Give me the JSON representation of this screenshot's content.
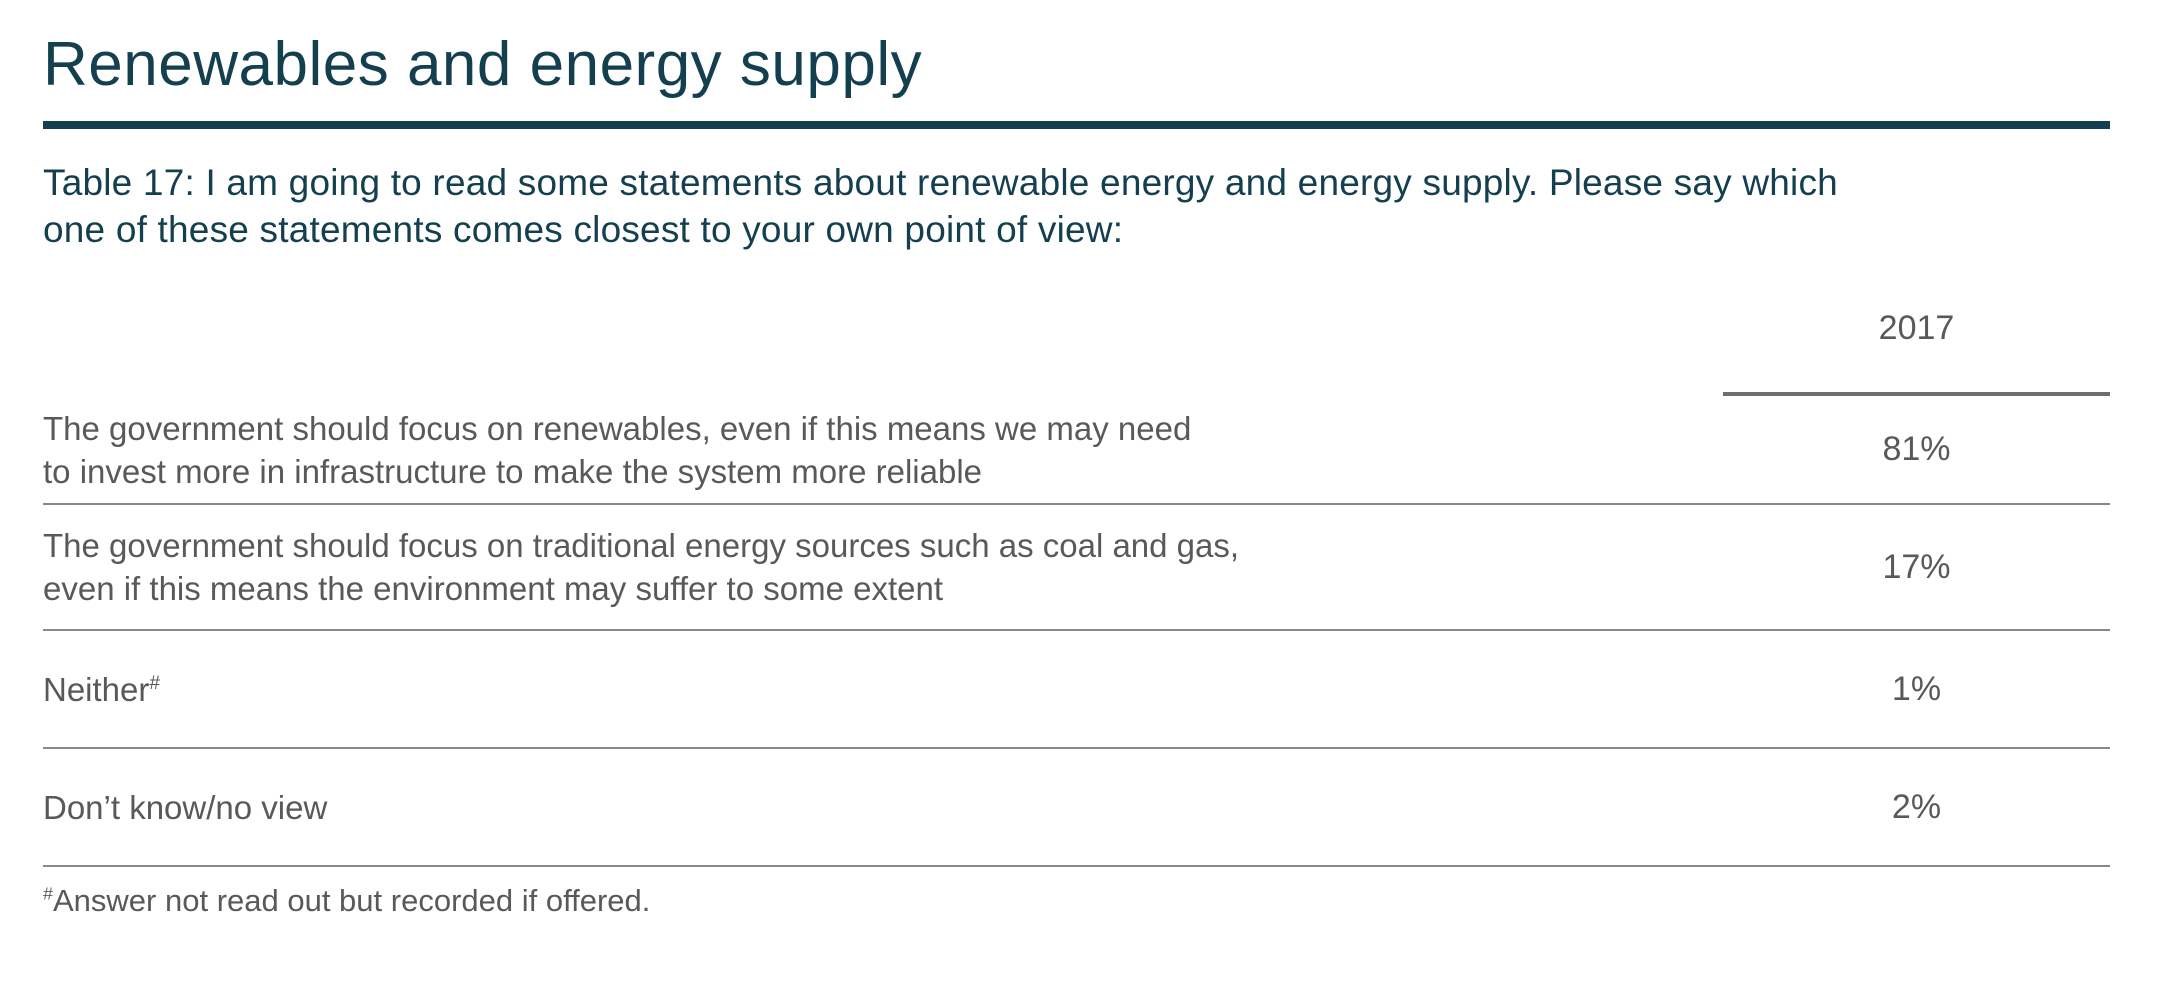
{
  "page": {
    "title": "Renewables and energy supply",
    "question": "Table 17: I am going to read some statements about renewable energy and energy supply. Please say which\none of these statements comes closest to your own point of view:",
    "footnote_marker": "#",
    "footnote_text": "Answer not read out but recorded if offered."
  },
  "colors": {
    "heading_teal": "#143F4E",
    "body_gray": "#58595B",
    "row_rule_gray": "#86888B",
    "header_rule_gray": "#6D6E71"
  },
  "table": {
    "columns": [
      "2017"
    ],
    "rows": [
      {
        "label": "The government should focus on renewables, even if this means we may need\nto invest more in infrastructure to make the system more reliable",
        "value": "81%"
      },
      {
        "label": "The government should focus on traditional energy sources such as coal and gas,\neven if this means the environment may suffer to some extent",
        "value": "17%"
      },
      {
        "label": "Neither",
        "sup": "#",
        "value": "1%"
      },
      {
        "label": "Don’t know/no view",
        "value": "2%"
      }
    ]
  }
}
